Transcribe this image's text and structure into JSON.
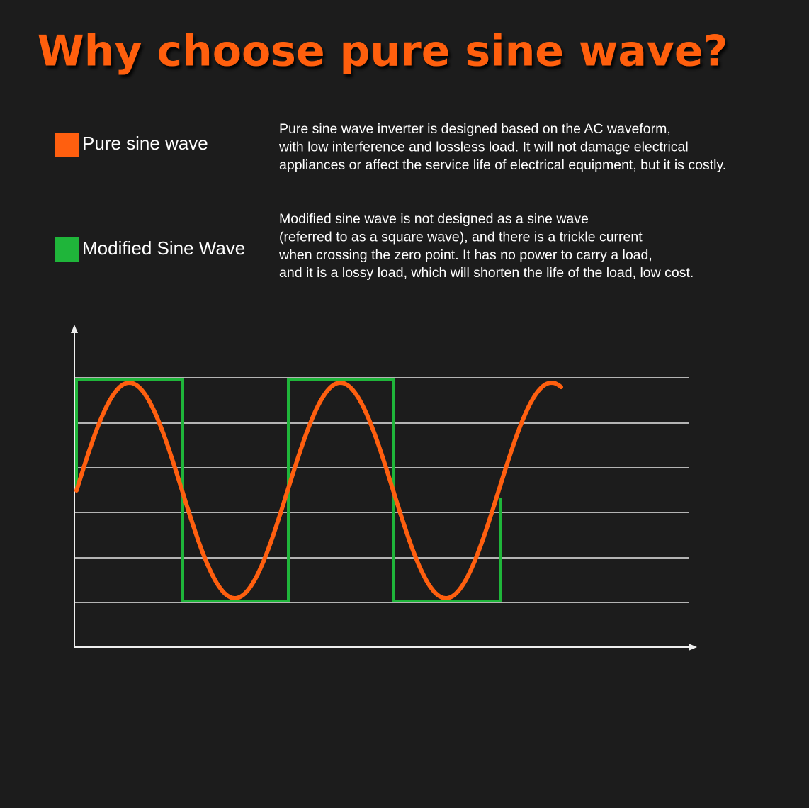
{
  "header": {
    "title": "Why choose pure sine wave?"
  },
  "legend": [
    {
      "label": "Pure sine wave",
      "description": [
        "Pure sine wave inverter is designed based on the AC waveform,",
        "with low interference and lossless load. It will not damage electrical",
        "appliances or affect the service life of electrical equipment, but it is costly."
      ]
    },
    {
      "label": "Modified Sine Wave",
      "description": [
        "Modified sine wave is not designed as a sine wave",
        "(referred to as a square wave), and there is a trickle current",
        "when crossing the zero point. It has no power to carry a load,",
        "and it is a lossy load, which will shorten the life of the load, low cost."
      ]
    }
  ]
}
